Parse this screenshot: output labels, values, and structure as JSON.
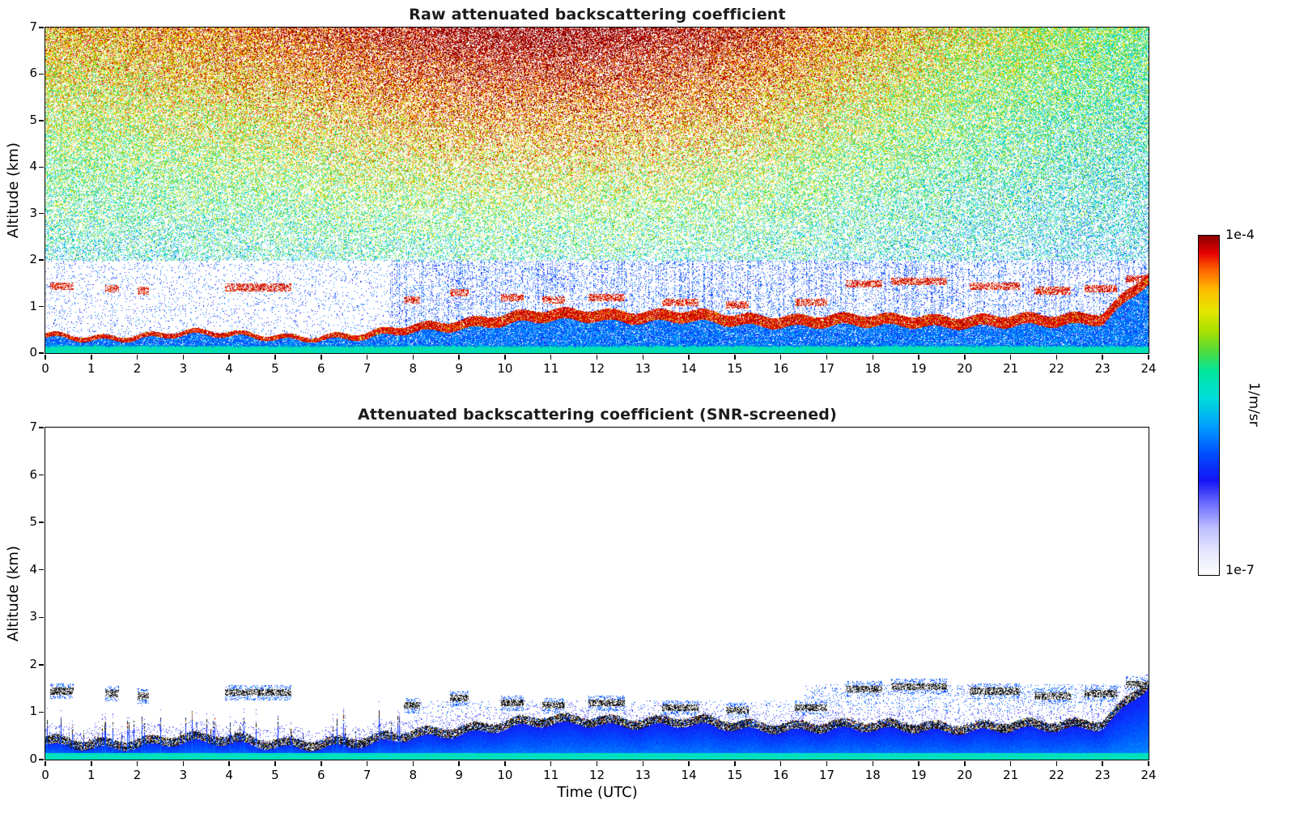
{
  "figure": {
    "background": "#ffffff"
  },
  "axes": {
    "x": {
      "label": "Time (UTC)",
      "min": 0,
      "max": 24,
      "ticks": [
        0,
        1,
        2,
        3,
        4,
        5,
        6,
        7,
        8,
        9,
        10,
        11,
        12,
        13,
        14,
        15,
        16,
        17,
        18,
        19,
        20,
        21,
        22,
        23,
        24
      ]
    },
    "y": {
      "label": "Altitude (km)",
      "min": 0,
      "max": 7,
      "ticks": [
        0,
        1,
        2,
        3,
        4,
        5,
        6,
        7
      ]
    }
  },
  "colorbar": {
    "label_top": "1e-4",
    "label_bottom": "1e-7",
    "unit": "1/m/sr",
    "stops": [
      [
        0.0,
        "#ffffff"
      ],
      [
        0.07,
        "#e6e6ff"
      ],
      [
        0.14,
        "#bebeff"
      ],
      [
        0.21,
        "#6e6eff"
      ],
      [
        0.28,
        "#1414f5"
      ],
      [
        0.36,
        "#0050ff"
      ],
      [
        0.44,
        "#00a0ff"
      ],
      [
        0.52,
        "#00dcdc"
      ],
      [
        0.6,
        "#00e6a0"
      ],
      [
        0.66,
        "#50dc3c"
      ],
      [
        0.72,
        "#aae000"
      ],
      [
        0.78,
        "#e6e600"
      ],
      [
        0.84,
        "#ffbe00"
      ],
      [
        0.9,
        "#ff6400"
      ],
      [
        0.95,
        "#e60000"
      ],
      [
        1.0,
        "#8c0000"
      ]
    ]
  },
  "chart_data": [
    {
      "type": "heatmap",
      "title": "Raw attenuated backscattering coefficient",
      "xlabel": "Time (UTC)",
      "ylabel": "Altitude (km)",
      "x_range": [
        0,
        24
      ],
      "y_range": [
        0,
        7
      ],
      "colorbar_min": "1e-7",
      "colorbar_max": "1e-4",
      "units": "1/m/sr",
      "boundary_layer_km": {
        "hours": [
          0,
          1,
          2,
          3,
          4,
          5,
          6,
          7,
          8,
          9,
          10,
          11,
          12,
          13,
          14,
          15,
          16,
          17,
          18,
          19,
          20,
          21,
          22,
          23,
          24
        ],
        "height_km": [
          0.35,
          0.33,
          0.38,
          0.42,
          0.4,
          0.38,
          0.34,
          0.35,
          0.55,
          0.65,
          0.72,
          0.8,
          0.85,
          0.8,
          0.78,
          0.72,
          0.72,
          0.7,
          0.68,
          0.72,
          0.7,
          0.68,
          0.7,
          0.8,
          1.65
        ]
      },
      "elevated_layers": [
        [
          0.1,
          0.6,
          1.45
        ],
        [
          1.3,
          1.6,
          1.4
        ],
        [
          2.0,
          2.25,
          1.35
        ],
        [
          3.9,
          5.35,
          1.42
        ],
        [
          7.8,
          8.15,
          1.15
        ],
        [
          8.8,
          9.2,
          1.3
        ],
        [
          9.9,
          10.4,
          1.2
        ],
        [
          10.8,
          11.3,
          1.15
        ],
        [
          11.8,
          12.6,
          1.2
        ],
        [
          13.4,
          14.2,
          1.1
        ],
        [
          14.8,
          15.3,
          1.05
        ],
        [
          16.3,
          17.0,
          1.1
        ],
        [
          17.4,
          18.2,
          1.5
        ],
        [
          18.4,
          19.6,
          1.55
        ],
        [
          20.1,
          21.2,
          1.45
        ],
        [
          21.5,
          22.3,
          1.35
        ],
        [
          22.6,
          23.3,
          1.4
        ],
        [
          23.5,
          24.0,
          1.6
        ]
      ],
      "description": "Full-day ceilometer raw backscatter: dense speckle noise above ~2 km growing warmer (green-yellow-orange-red ~1e-4) toward the top and mid-day hours; a dark-red aerosol/boundary-layer top band near 0.3-0.9 km rising to ~1.7 km at 24 UTC; cyan-blue surface layer below; sparse blue noise columns below 2 km after ~08 UTC."
    },
    {
      "type": "heatmap",
      "title": "Attenuated backscattering coefficient (SNR-screened)",
      "xlabel": "Time (UTC)",
      "ylabel": "Altitude (km)",
      "x_range": [
        0,
        24
      ],
      "y_range": [
        0,
        7
      ],
      "colorbar_min": "1e-7",
      "colorbar_max": "1e-4",
      "units": "1/m/sr",
      "boundary_layer_km": {
        "hours": [
          0,
          1,
          2,
          3,
          4,
          5,
          6,
          7,
          8,
          9,
          10,
          11,
          12,
          13,
          14,
          15,
          16,
          17,
          18,
          19,
          20,
          21,
          22,
          23,
          24
        ],
        "height_km": [
          0.35,
          0.33,
          0.38,
          0.42,
          0.4,
          0.38,
          0.34,
          0.35,
          0.55,
          0.65,
          0.72,
          0.8,
          0.85,
          0.8,
          0.78,
          0.72,
          0.72,
          0.7,
          0.68,
          0.72,
          0.7,
          0.68,
          0.7,
          0.8,
          1.65
        ]
      },
      "elevated_layers": [
        [
          0.1,
          0.6,
          1.45
        ],
        [
          1.3,
          1.6,
          1.4
        ],
        [
          2.0,
          2.25,
          1.35
        ],
        [
          3.9,
          5.35,
          1.42
        ],
        [
          7.8,
          8.15,
          1.15
        ],
        [
          8.8,
          9.2,
          1.3
        ],
        [
          9.9,
          10.4,
          1.2
        ],
        [
          10.8,
          11.3,
          1.15
        ],
        [
          11.8,
          12.6,
          1.2
        ],
        [
          13.4,
          14.2,
          1.1
        ],
        [
          14.8,
          15.3,
          1.05
        ],
        [
          16.3,
          17.0,
          1.1
        ],
        [
          17.4,
          18.2,
          1.5
        ],
        [
          18.4,
          19.6,
          1.55
        ],
        [
          20.1,
          21.2,
          1.45
        ],
        [
          21.5,
          22.3,
          1.35
        ],
        [
          22.6,
          23.3,
          1.4
        ],
        [
          23.5,
          24.0,
          1.6
        ]
      ],
      "description": "Same field after SNR screening: white (removed noise) above ~2 km; solid blue aerosol layer from the surface up to the boundary-layer top with a cyan strip at the ground; noisy black/dark boundary line with occasional red-yellow specks along the layer top; scattered dark elevated layers near 1-1.7 km, rising to ~1.7 km at 24 UTC."
    }
  ]
}
